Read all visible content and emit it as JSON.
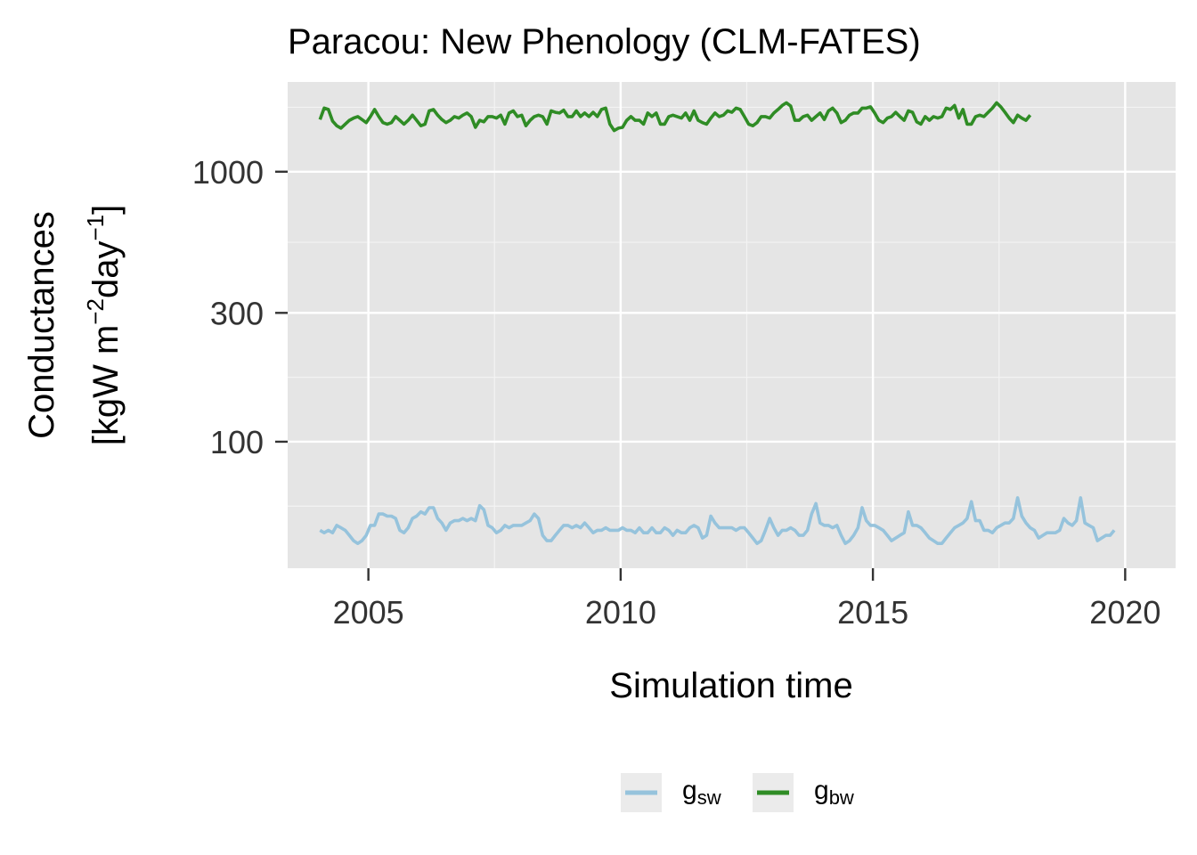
{
  "chart_data": {
    "type": "line",
    "title": "Paracou: New Phenology (CLM-FATES)",
    "xlabel": "Simulation time",
    "ylabel_line1": "Conductances",
    "ylabel_line2": {
      "open": "[kgW m",
      "exp1": "−2",
      "mid": "day",
      "exp2": "−1",
      "close": "]"
    },
    "y_scale": "log10",
    "xlim": [
      2003.4,
      2021.0
    ],
    "ylim": [
      34,
      2150
    ],
    "x_ticks": [
      2005,
      2010,
      2015,
      2020
    ],
    "x_tick_labels": [
      "2005",
      "2010",
      "2015",
      "2020"
    ],
    "y_ticks": [
      100,
      300,
      1000
    ],
    "y_tick_labels": [
      "100",
      "300",
      "1000"
    ],
    "grid": true,
    "legend_position": "bottom",
    "series": [
      {
        "name_base": "g",
        "name_sub": "sw",
        "color": "#96C3DC",
        "x_start": 2004.04,
        "x_step": 0.0833,
        "values": [
          47,
          46,
          47,
          46,
          49,
          48,
          47,
          45,
          43,
          42,
          43,
          45,
          49,
          49,
          54,
          54,
          53,
          53,
          52,
          47,
          46,
          48,
          52,
          53,
          55,
          54,
          57,
          57,
          52,
          50,
          47,
          50,
          51,
          51,
          52,
          51,
          52,
          51,
          58,
          56,
          49,
          48,
          46,
          47,
          49,
          48,
          49,
          49,
          49,
          50,
          51,
          54,
          52,
          45,
          43,
          43,
          45,
          47,
          49,
          49,
          48,
          49,
          48,
          50,
          48,
          46,
          47,
          47,
          48,
          47,
          47,
          47,
          48,
          47,
          47,
          46,
          48,
          46,
          46,
          48,
          46,
          46,
          48,
          47,
          45,
          47,
          46,
          46,
          48,
          49,
          48,
          44,
          45,
          53,
          50,
          48,
          48,
          48,
          48,
          47,
          48,
          48,
          46,
          44,
          42,
          43,
          47,
          52,
          48,
          45,
          47,
          47,
          48,
          47,
          45,
          45,
          47,
          54,
          59,
          50,
          49,
          49,
          48,
          49,
          45,
          42,
          43,
          45,
          48,
          57,
          51,
          49,
          49,
          48,
          47,
          45,
          43,
          44,
          45,
          46,
          55,
          49,
          49,
          48,
          46,
          44,
          43,
          42,
          42,
          44,
          46,
          48,
          49,
          50,
          52,
          60,
          51,
          51,
          47,
          47,
          46,
          48,
          49,
          50,
          50,
          52,
          62,
          53,
          50,
          48,
          47,
          44,
          45,
          46,
          46,
          46,
          47,
          52,
          50,
          49,
          51,
          62,
          50,
          49,
          48,
          43,
          44,
          45,
          45,
          47
        ]
      },
      {
        "name_base": "g",
        "name_sub": "bw",
        "color": "#2F8C25",
        "x_start": 2004.04,
        "x_step": 0.0833,
        "values": [
          1560,
          1720,
          1700,
          1540,
          1480,
          1450,
          1500,
          1550,
          1580,
          1600,
          1560,
          1520,
          1600,
          1700,
          1600,
          1520,
          1500,
          1520,
          1600,
          1550,
          1500,
          1550,
          1620,
          1550,
          1480,
          1500,
          1680,
          1700,
          1620,
          1560,
          1520,
          1550,
          1600,
          1580,
          1620,
          1650,
          1600,
          1460,
          1550,
          1530,
          1600,
          1600,
          1580,
          1620,
          1500,
          1650,
          1680,
          1600,
          1620,
          1480,
          1550,
          1600,
          1620,
          1600,
          1500,
          1680,
          1660,
          1650,
          1690,
          1600,
          1600,
          1680,
          1600,
          1650,
          1600,
          1660,
          1600,
          1700,
          1720,
          1500,
          1420,
          1450,
          1460,
          1550,
          1600,
          1550,
          1550,
          1500,
          1650,
          1600,
          1650,
          1500,
          1500,
          1600,
          1620,
          1600,
          1580,
          1650,
          1550,
          1680,
          1550,
          1520,
          1500,
          1580,
          1650,
          1600,
          1620,
          1680,
          1660,
          1720,
          1700,
          1600,
          1500,
          1480,
          1520,
          1600,
          1600,
          1580,
          1650,
          1700,
          1760,
          1800,
          1750,
          1550,
          1550,
          1600,
          1620,
          1550,
          1600,
          1650,
          1560,
          1680,
          1720,
          1650,
          1520,
          1550,
          1620,
          1650,
          1650,
          1720,
          1720,
          1740,
          1650,
          1550,
          1520,
          1580,
          1600,
          1660,
          1600,
          1550,
          1680,
          1660,
          1530,
          1500,
          1600,
          1550,
          1600,
          1580,
          1600,
          1720,
          1700,
          1760,
          1580,
          1700,
          1500,
          1500,
          1600,
          1620,
          1600,
          1660,
          1720,
          1800,
          1740,
          1660,
          1580,
          1520,
          1620,
          1580,
          1550,
          1620
        ]
      }
    ]
  }
}
